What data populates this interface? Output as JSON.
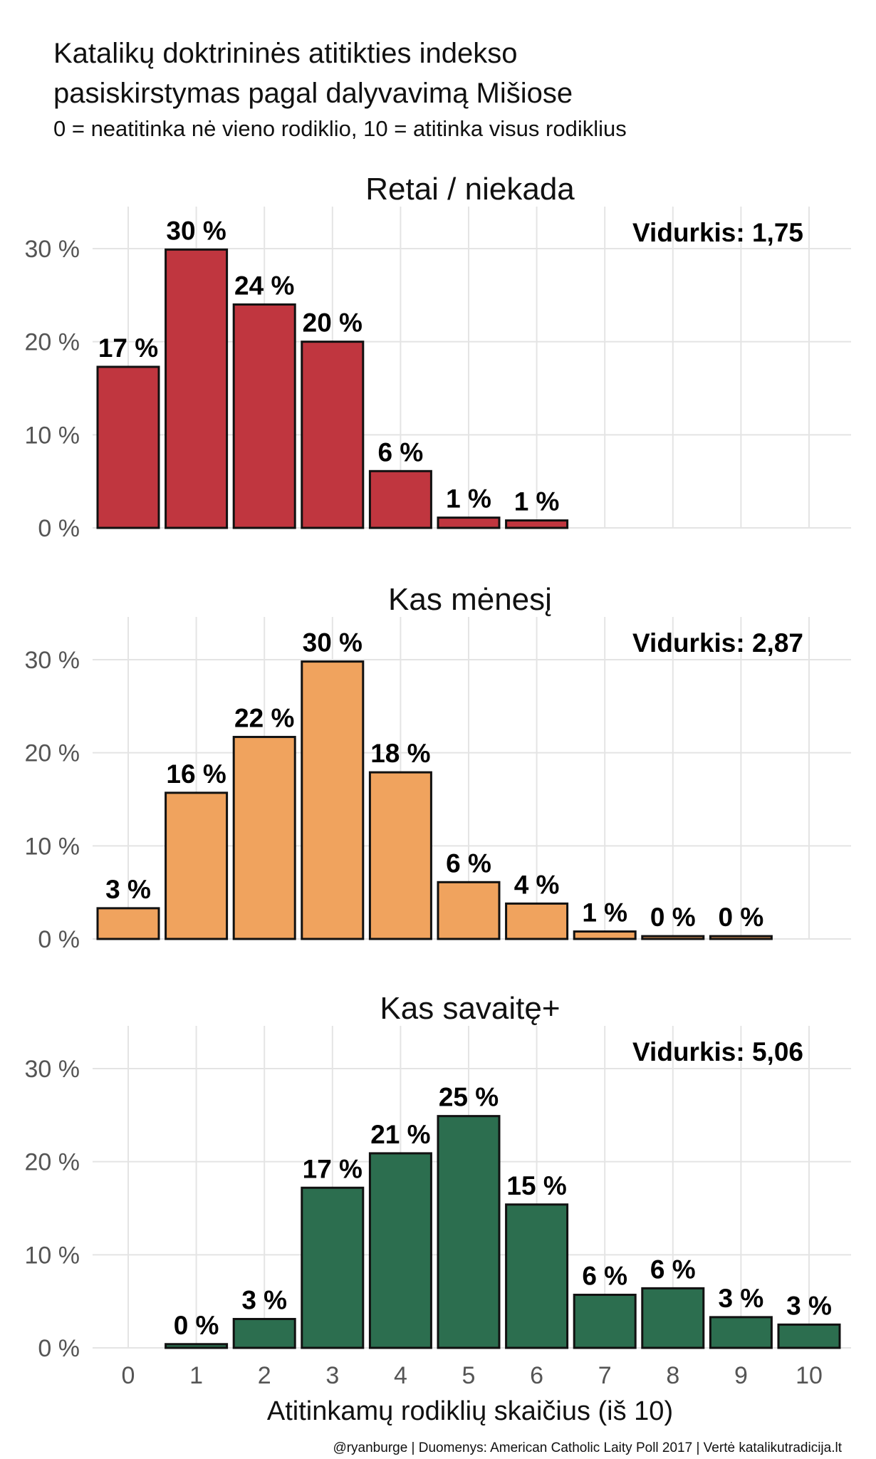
{
  "title_line1": "Katalikų doktrininės atitikties indekso",
  "title_line2": "pasiskirstymas pagal dalyvavimą Mišiose",
  "subtitle": "0 = neatitinka nė vieno rodiklio, 10 = atitinka visus rodiklius",
  "caption": "@ryanburge | Duomenys: American Catholic Laity Poll 2017 | Vertė katalikutradicija.lt",
  "chart_data": {
    "type": "bar",
    "xlabel": "Atitinkamų rodiklių skaičius (iš 10)",
    "ylabel": "",
    "ylim": [
      0,
      34
    ],
    "y_ticks": [
      "0 %",
      "10 %",
      "20 %",
      "30 %"
    ],
    "categories": [
      "0",
      "1",
      "2",
      "3",
      "4",
      "5",
      "6",
      "7",
      "8",
      "9",
      "10"
    ],
    "grid": true,
    "panels": [
      {
        "name": "Retai / niekada",
        "color": "#c0363f",
        "mean_label": "Vidurkis: 1,75",
        "values": [
          17.3,
          29.9,
          24.0,
          20.0,
          6.1,
          1.1,
          0.8,
          null,
          null,
          null,
          null
        ],
        "labels": [
          "17 %",
          "30 %",
          "24 %",
          "20 %",
          "6 %",
          "1 %",
          "1 %",
          null,
          null,
          null,
          null
        ]
      },
      {
        "name": "Kas mėnesį",
        "color": "#f0a35e",
        "mean_label": "Vidurkis: 2,87",
        "values": [
          3.3,
          15.7,
          21.7,
          29.8,
          17.9,
          6.1,
          3.8,
          0.8,
          0.3,
          0.3,
          null
        ],
        "labels": [
          "3 %",
          "16 %",
          "22 %",
          "30 %",
          "18 %",
          "6 %",
          "4 %",
          "1 %",
          "0 %",
          "0 %",
          null
        ]
      },
      {
        "name": "Kas savaitę+",
        "color": "#2c6e4f",
        "mean_label": "Vidurkis: 5,06",
        "values": [
          null,
          0.4,
          3.1,
          17.2,
          20.9,
          24.9,
          15.4,
          5.7,
          6.4,
          3.3,
          2.5
        ],
        "labels": [
          null,
          "0 %",
          "3 %",
          "17 %",
          "21 %",
          "25 %",
          "15 %",
          "6 %",
          "6 %",
          "3 %",
          "3 %"
        ]
      }
    ]
  }
}
